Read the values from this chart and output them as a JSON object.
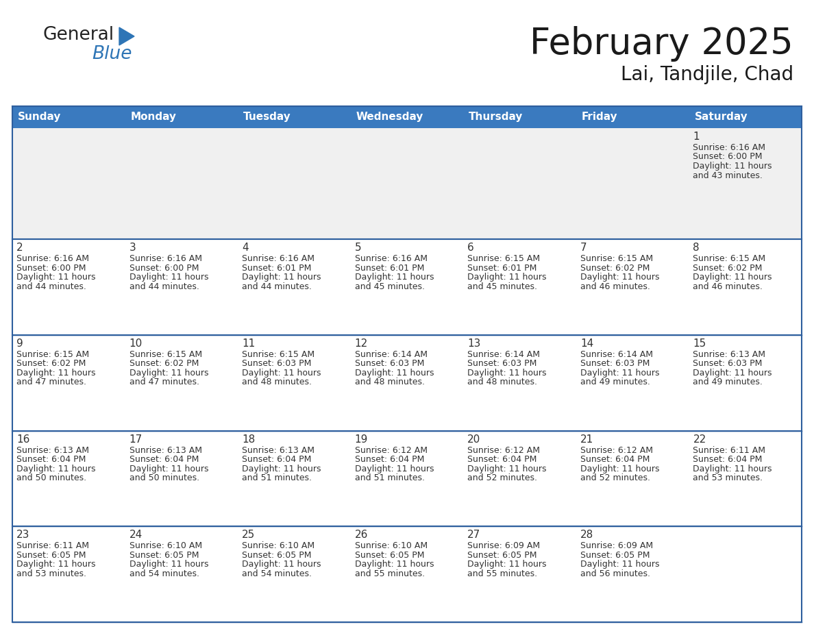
{
  "title": "February 2025",
  "subtitle": "Lai, Tandjile, Chad",
  "days_of_week": [
    "Sunday",
    "Monday",
    "Tuesday",
    "Wednesday",
    "Thursday",
    "Friday",
    "Saturday"
  ],
  "header_bg": "#3a7abf",
  "header_text": "#ffffff",
  "row0_bg": "#f0f0f0",
  "row_bg": "#ffffff",
  "border_color": "#2e5f9e",
  "day_number_color": "#333333",
  "text_color": "#333333",
  "calendar_data": [
    {
      "day": 1,
      "col": 6,
      "row": 0,
      "sunrise": "6:16 AM",
      "sunset": "6:00 PM",
      "daylight_hours": 11,
      "daylight_mins": 43
    },
    {
      "day": 2,
      "col": 0,
      "row": 1,
      "sunrise": "6:16 AM",
      "sunset": "6:00 PM",
      "daylight_hours": 11,
      "daylight_mins": 44
    },
    {
      "day": 3,
      "col": 1,
      "row": 1,
      "sunrise": "6:16 AM",
      "sunset": "6:00 PM",
      "daylight_hours": 11,
      "daylight_mins": 44
    },
    {
      "day": 4,
      "col": 2,
      "row": 1,
      "sunrise": "6:16 AM",
      "sunset": "6:01 PM",
      "daylight_hours": 11,
      "daylight_mins": 44
    },
    {
      "day": 5,
      "col": 3,
      "row": 1,
      "sunrise": "6:16 AM",
      "sunset": "6:01 PM",
      "daylight_hours": 11,
      "daylight_mins": 45
    },
    {
      "day": 6,
      "col": 4,
      "row": 1,
      "sunrise": "6:15 AM",
      "sunset": "6:01 PM",
      "daylight_hours": 11,
      "daylight_mins": 45
    },
    {
      "day": 7,
      "col": 5,
      "row": 1,
      "sunrise": "6:15 AM",
      "sunset": "6:02 PM",
      "daylight_hours": 11,
      "daylight_mins": 46
    },
    {
      "day": 8,
      "col": 6,
      "row": 1,
      "sunrise": "6:15 AM",
      "sunset": "6:02 PM",
      "daylight_hours": 11,
      "daylight_mins": 46
    },
    {
      "day": 9,
      "col": 0,
      "row": 2,
      "sunrise": "6:15 AM",
      "sunset": "6:02 PM",
      "daylight_hours": 11,
      "daylight_mins": 47
    },
    {
      "day": 10,
      "col": 1,
      "row": 2,
      "sunrise": "6:15 AM",
      "sunset": "6:02 PM",
      "daylight_hours": 11,
      "daylight_mins": 47
    },
    {
      "day": 11,
      "col": 2,
      "row": 2,
      "sunrise": "6:15 AM",
      "sunset": "6:03 PM",
      "daylight_hours": 11,
      "daylight_mins": 48
    },
    {
      "day": 12,
      "col": 3,
      "row": 2,
      "sunrise": "6:14 AM",
      "sunset": "6:03 PM",
      "daylight_hours": 11,
      "daylight_mins": 48
    },
    {
      "day": 13,
      "col": 4,
      "row": 2,
      "sunrise": "6:14 AM",
      "sunset": "6:03 PM",
      "daylight_hours": 11,
      "daylight_mins": 48
    },
    {
      "day": 14,
      "col": 5,
      "row": 2,
      "sunrise": "6:14 AM",
      "sunset": "6:03 PM",
      "daylight_hours": 11,
      "daylight_mins": 49
    },
    {
      "day": 15,
      "col": 6,
      "row": 2,
      "sunrise": "6:13 AM",
      "sunset": "6:03 PM",
      "daylight_hours": 11,
      "daylight_mins": 49
    },
    {
      "day": 16,
      "col": 0,
      "row": 3,
      "sunrise": "6:13 AM",
      "sunset": "6:04 PM",
      "daylight_hours": 11,
      "daylight_mins": 50
    },
    {
      "day": 17,
      "col": 1,
      "row": 3,
      "sunrise": "6:13 AM",
      "sunset": "6:04 PM",
      "daylight_hours": 11,
      "daylight_mins": 50
    },
    {
      "day": 18,
      "col": 2,
      "row": 3,
      "sunrise": "6:13 AM",
      "sunset": "6:04 PM",
      "daylight_hours": 11,
      "daylight_mins": 51
    },
    {
      "day": 19,
      "col": 3,
      "row": 3,
      "sunrise": "6:12 AM",
      "sunset": "6:04 PM",
      "daylight_hours": 11,
      "daylight_mins": 51
    },
    {
      "day": 20,
      "col": 4,
      "row": 3,
      "sunrise": "6:12 AM",
      "sunset": "6:04 PM",
      "daylight_hours": 11,
      "daylight_mins": 52
    },
    {
      "day": 21,
      "col": 5,
      "row": 3,
      "sunrise": "6:12 AM",
      "sunset": "6:04 PM",
      "daylight_hours": 11,
      "daylight_mins": 52
    },
    {
      "day": 22,
      "col": 6,
      "row": 3,
      "sunrise": "6:11 AM",
      "sunset": "6:04 PM",
      "daylight_hours": 11,
      "daylight_mins": 53
    },
    {
      "day": 23,
      "col": 0,
      "row": 4,
      "sunrise": "6:11 AM",
      "sunset": "6:05 PM",
      "daylight_hours": 11,
      "daylight_mins": 53
    },
    {
      "day": 24,
      "col": 1,
      "row": 4,
      "sunrise": "6:10 AM",
      "sunset": "6:05 PM",
      "daylight_hours": 11,
      "daylight_mins": 54
    },
    {
      "day": 25,
      "col": 2,
      "row": 4,
      "sunrise": "6:10 AM",
      "sunset": "6:05 PM",
      "daylight_hours": 11,
      "daylight_mins": 54
    },
    {
      "day": 26,
      "col": 3,
      "row": 4,
      "sunrise": "6:10 AM",
      "sunset": "6:05 PM",
      "daylight_hours": 11,
      "daylight_mins": 55
    },
    {
      "day": 27,
      "col": 4,
      "row": 4,
      "sunrise": "6:09 AM",
      "sunset": "6:05 PM",
      "daylight_hours": 11,
      "daylight_mins": 55
    },
    {
      "day": 28,
      "col": 5,
      "row": 4,
      "sunrise": "6:09 AM",
      "sunset": "6:05 PM",
      "daylight_hours": 11,
      "daylight_mins": 56
    }
  ],
  "num_rows": 5,
  "num_cols": 7,
  "logo_triangle_color": "#2e75b6",
  "logo_general_color": "#222222",
  "logo_blue_color": "#2e75b6"
}
